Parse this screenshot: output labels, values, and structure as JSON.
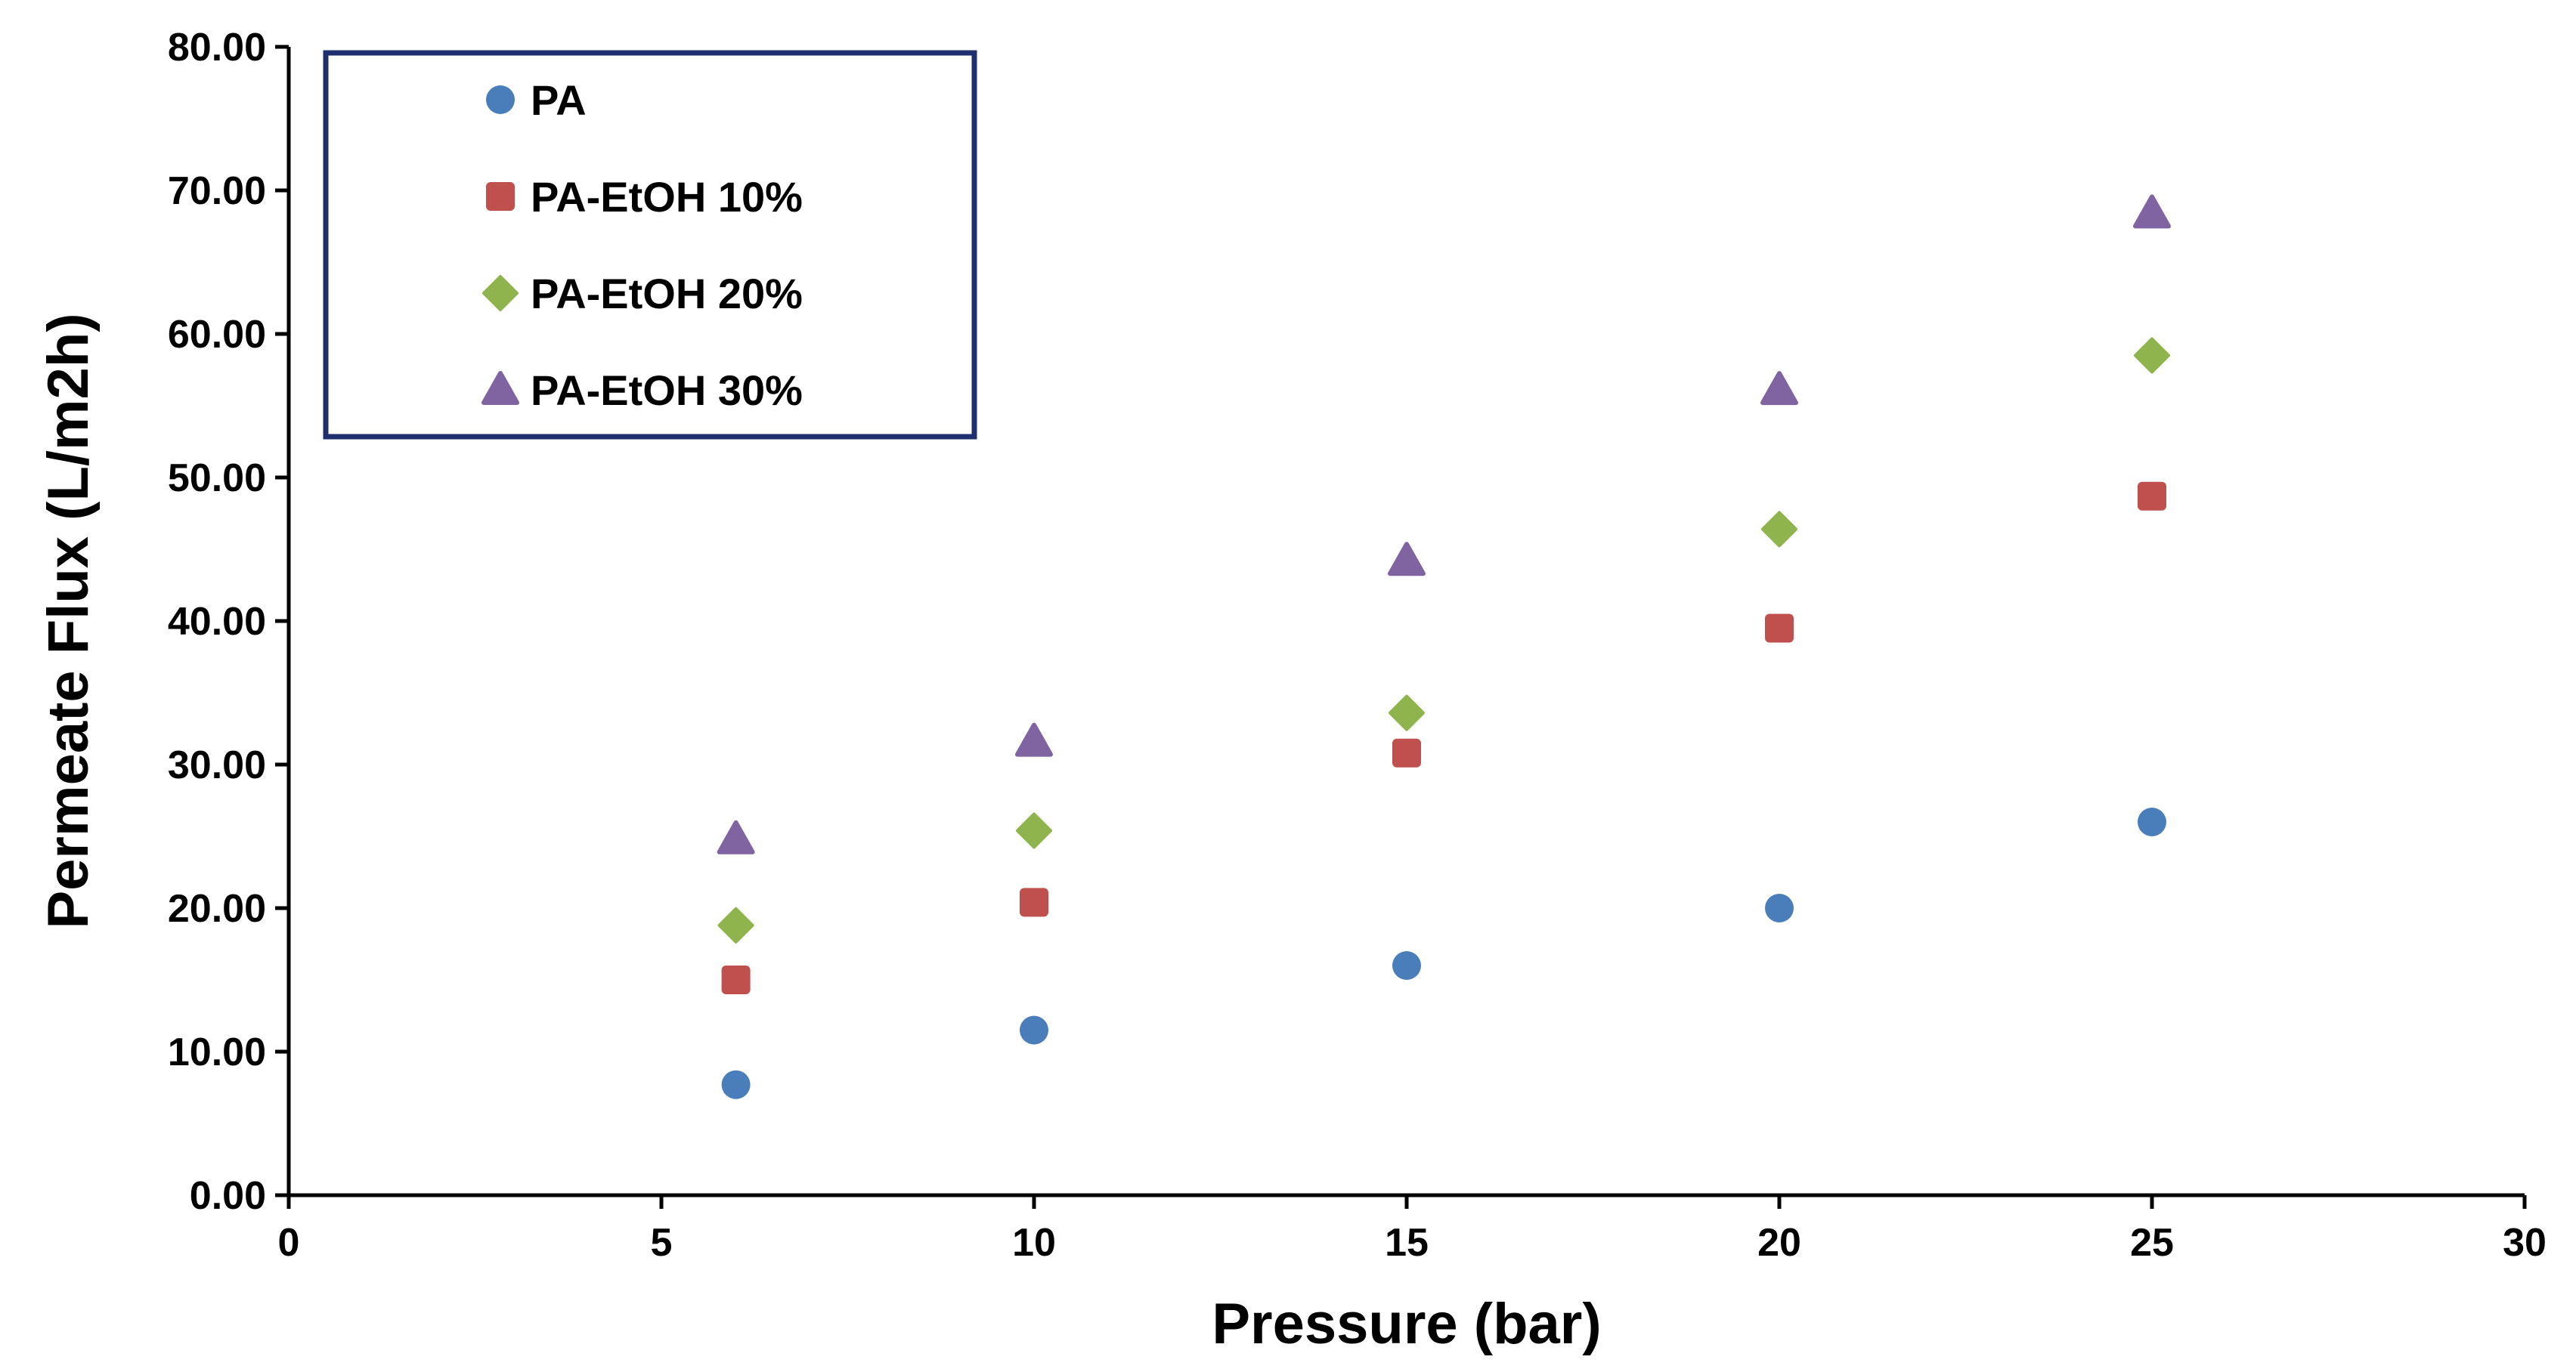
{
  "chart_data": {
    "type": "scatter",
    "title": "",
    "xlabel": "Pressure (bar)",
    "ylabel": "Permeate Flux  (L/m2h)",
    "xlim": [
      0,
      30
    ],
    "ylim": [
      0,
      80
    ],
    "xticks": [
      0,
      5,
      10,
      15,
      20,
      25,
      30
    ],
    "xtick_labels": [
      "0",
      "5",
      "10",
      "15",
      "20",
      "25",
      "30"
    ],
    "yticks": [
      0,
      10,
      20,
      30,
      40,
      50,
      60,
      70,
      80
    ],
    "ytick_labels": [
      "0.00",
      "10.00",
      "20.00",
      "30.00",
      "40.00",
      "50.00",
      "60.00",
      "70.00",
      "80.00"
    ],
    "grid": false,
    "legend_position": "top-left",
    "x": [
      6,
      10,
      15,
      20,
      25
    ],
    "series": [
      {
        "name": "PA",
        "marker": "circle",
        "color": "#4a7ebb",
        "values": [
          7.7,
          11.5,
          16.0,
          20.0,
          26.0
        ]
      },
      {
        "name": "PA-EtOH 10%",
        "marker": "square",
        "color": "#c0504d",
        "values": [
          15.0,
          20.4,
          30.8,
          39.5,
          48.7
        ]
      },
      {
        "name": "PA-EtOH 20%",
        "marker": "diamond",
        "color": "#8fb34d",
        "values": [
          18.8,
          25.4,
          33.6,
          46.4,
          58.5
        ]
      },
      {
        "name": "PA-EtOH 30%",
        "marker": "triangle",
        "color": "#8064a2",
        "values": [
          24.8,
          31.6,
          44.2,
          56.1,
          68.4
        ]
      }
    ],
    "legend_border_color": "#1f2f6e"
  }
}
